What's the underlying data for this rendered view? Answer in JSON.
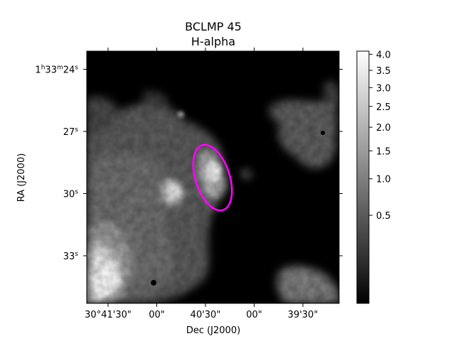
{
  "chart_data": {
    "type": "heatmap",
    "title": "BCLMP 45",
    "subtitle": "H-alpha",
    "xlabel": "Dec (J2000)",
    "ylabel": "RA (J2000)",
    "x_ticks": [
      {
        "label": "30°41'30\"",
        "value": 0
      },
      {
        "label": "00\"",
        "value": 1
      },
      {
        "label": "40'30\"",
        "value": 2
      },
      {
        "label": "00\"",
        "value": 3
      },
      {
        "label": "39'30\"",
        "value": 4
      }
    ],
    "y_ticks": [
      {
        "h": "1",
        "m": "33",
        "s": "24",
        "full": true,
        "value": 24
      },
      {
        "s": "27",
        "full": false,
        "value": 27
      },
      {
        "s": "30",
        "full": false,
        "value": 30
      },
      {
        "s": "33",
        "full": false,
        "value": 33
      }
    ],
    "colorbar": {
      "cmap": "gray",
      "scale": "sqrt",
      "range": [
        0,
        4.1
      ],
      "ticks": [
        4.0,
        3.5,
        3.0,
        2.5,
        2.0,
        1.5,
        1.0,
        0.5
      ],
      "tick_labels": [
        "4.0",
        "3.5",
        "3.0",
        "2.5",
        "2.0",
        "1.5",
        "1.0",
        "0.5"
      ]
    },
    "aperture": {
      "shape": "ellipse",
      "color": "#ff00ff"
    }
  }
}
